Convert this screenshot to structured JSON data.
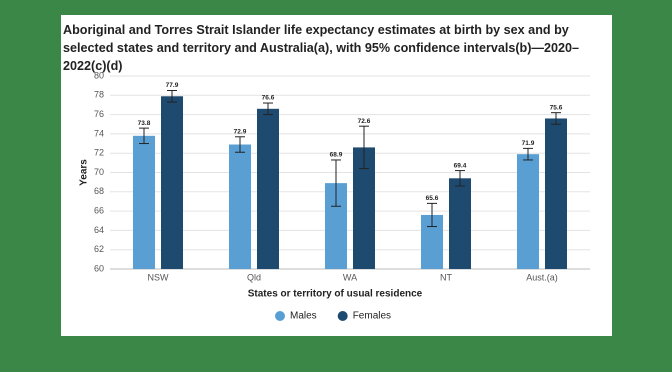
{
  "chart_data": {
    "type": "bar",
    "title": "Aboriginal and Torres Strait Islander life expectancy estimates at birth by sex and by selected states and territory and Australia(a), with 95% confidence intervals(b)—2020–2022(c)(d)",
    "x_label": "States or territory of usual residence",
    "y_label": "Years",
    "categories": [
      "NSW",
      "Qld",
      "WA",
      "NT",
      "Aust.(a)"
    ],
    "series": [
      {
        "name": "Males",
        "color": "#5a9fd4",
        "values": [
          73.8,
          72.9,
          68.9,
          65.6,
          71.9
        ],
        "errors": [
          0.8,
          0.8,
          2.4,
          1.2,
          0.6
        ]
      },
      {
        "name": "Females",
        "color": "#1f4a70",
        "values": [
          77.9,
          76.6,
          72.6,
          69.4,
          75.6
        ],
        "errors": [
          0.6,
          0.6,
          2.2,
          0.8,
          0.6
        ]
      }
    ],
    "ylim": [
      60,
      80
    ],
    "yticks": [
      60,
      62,
      64,
      66,
      68,
      70,
      72,
      74,
      76,
      78,
      80
    ],
    "grid": true,
    "legend": "bottom"
  }
}
